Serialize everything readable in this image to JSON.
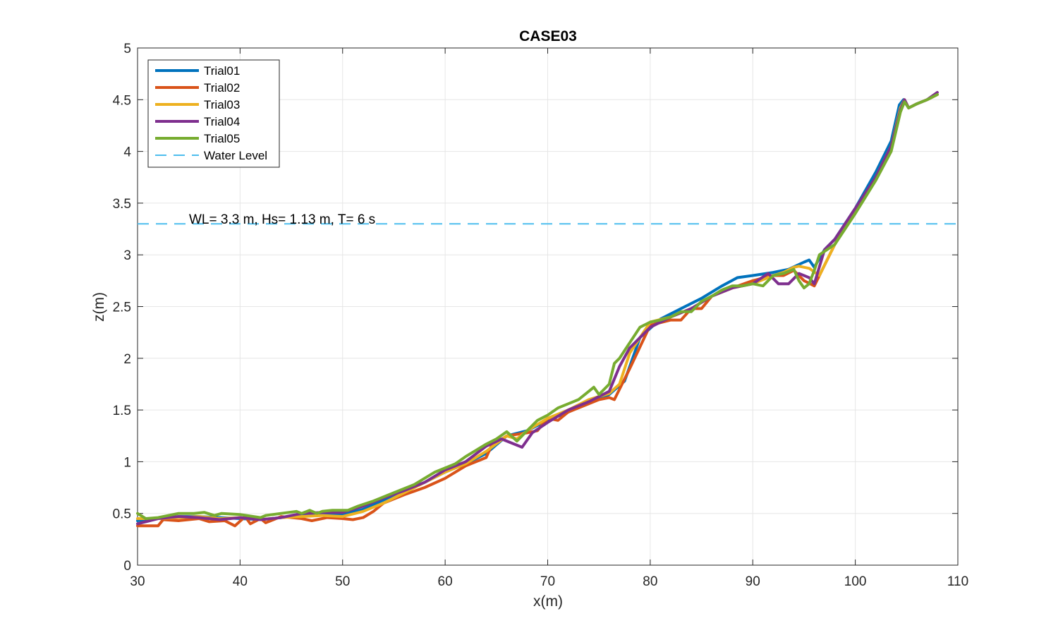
{
  "chart_data": {
    "type": "line",
    "title": "CASE03",
    "xlabel": "x(m)",
    "ylabel": "z(m)",
    "xlim": [
      30,
      110
    ],
    "ylim": [
      0,
      5
    ],
    "xticks": [
      "30",
      "40",
      "50",
      "60",
      "70",
      "80",
      "90",
      "100",
      "110"
    ],
    "yticks": [
      "0",
      "0.5",
      "1",
      "1.5",
      "2",
      "2.5",
      "3",
      "3.5",
      "4",
      "4.5",
      "5"
    ],
    "grid": true,
    "legend_position": "top-left",
    "annotation": "WL= 3.3 m,   Hs= 1.13 m, T= 6 s",
    "water_level": {
      "name": "Water Level",
      "value": 3.3,
      "color": "#4DBEEE",
      "style": "dashed"
    },
    "series": [
      {
        "name": "Trial01",
        "color": "#0072BD",
        "x": [
          30,
          32,
          34,
          36,
          38,
          40,
          42,
          44,
          46,
          48,
          50,
          52,
          54,
          56,
          58,
          60,
          62,
          64,
          66,
          68,
          70,
          72,
          74,
          76,
          77.5,
          79,
          81,
          83,
          85,
          87,
          88.5,
          90,
          92,
          93.5,
          95,
          95.5,
          96,
          97,
          98,
          100,
          102,
          103.5,
          104.3,
          104.7,
          105.2,
          106,
          107,
          108
        ],
        "y": [
          0.43,
          0.45,
          0.47,
          0.47,
          0.46,
          0.45,
          0.44,
          0.46,
          0.48,
          0.5,
          0.49,
          0.54,
          0.63,
          0.72,
          0.8,
          0.9,
          0.98,
          1.08,
          1.25,
          1.3,
          1.4,
          1.48,
          1.57,
          1.65,
          1.78,
          2.2,
          2.38,
          2.48,
          2.58,
          2.7,
          2.78,
          2.8,
          2.83,
          2.86,
          2.93,
          2.95,
          2.88,
          3.05,
          3.15,
          3.45,
          3.8,
          4.1,
          4.45,
          4.5,
          4.42,
          4.46,
          4.5,
          4.55
        ]
      },
      {
        "name": "Trial02",
        "color": "#D95319",
        "x": [
          30,
          31,
          32,
          32.5,
          34,
          36,
          37,
          38.5,
          39.5,
          40.5,
          41,
          42,
          42.5,
          44,
          46,
          47,
          48.5,
          50,
          51,
          52,
          53,
          54,
          56,
          58,
          60,
          62,
          64,
          64.5,
          66,
          68,
          69,
          70,
          71,
          72,
          74,
          75,
          76,
          76.5,
          78,
          80,
          82,
          83,
          84,
          85,
          86,
          88,
          90,
          92,
          93,
          94,
          95,
          96,
          97,
          98,
          100,
          102,
          103.5,
          104.4,
          104.8,
          105.2,
          106,
          107,
          108
        ],
        "y": [
          0.38,
          0.38,
          0.38,
          0.44,
          0.43,
          0.45,
          0.42,
          0.43,
          0.38,
          0.47,
          0.4,
          0.45,
          0.41,
          0.47,
          0.45,
          0.43,
          0.46,
          0.45,
          0.44,
          0.46,
          0.52,
          0.6,
          0.68,
          0.75,
          0.84,
          0.96,
          1.04,
          1.15,
          1.25,
          1.28,
          1.3,
          1.42,
          1.4,
          1.48,
          1.56,
          1.6,
          1.62,
          1.6,
          1.9,
          2.32,
          2.37,
          2.37,
          2.48,
          2.48,
          2.6,
          2.68,
          2.75,
          2.8,
          2.8,
          2.85,
          2.75,
          2.7,
          2.9,
          3.1,
          3.42,
          3.75,
          4.05,
          4.4,
          4.5,
          4.42,
          4.46,
          4.5,
          4.55
        ]
      },
      {
        "name": "Trial03",
        "color": "#EDB120",
        "x": [
          30,
          32,
          34,
          36,
          38,
          40,
          42,
          44,
          46,
          48,
          50,
          52,
          54,
          56,
          58,
          60,
          62,
          64,
          66,
          67,
          68,
          70,
          72,
          74,
          76,
          77,
          78,
          80,
          82,
          84,
          86,
          88,
          90,
          92,
          93,
          94,
          94.5,
          95.5,
          96.5,
          98,
          100,
          102,
          103.5,
          104.4,
          104.8,
          105.2,
          106,
          107,
          108
        ],
        "y": [
          0.45,
          0.45,
          0.46,
          0.47,
          0.45,
          0.46,
          0.44,
          0.46,
          0.47,
          0.48,
          0.47,
          0.52,
          0.6,
          0.7,
          0.8,
          0.9,
          0.98,
          1.1,
          1.25,
          1.22,
          1.3,
          1.42,
          1.5,
          1.6,
          1.66,
          1.75,
          2.05,
          2.35,
          2.4,
          2.48,
          2.6,
          2.68,
          2.72,
          2.8,
          2.83,
          2.88,
          2.89,
          2.87,
          2.8,
          3.1,
          3.42,
          3.75,
          4.05,
          4.42,
          4.5,
          4.42,
          4.46,
          4.5,
          4.55
        ]
      },
      {
        "name": "Trial04",
        "color": "#7E2F8E",
        "x": [
          30,
          32,
          34,
          36,
          38,
          40,
          42,
          44,
          46,
          48,
          50,
          52,
          54,
          56,
          58,
          60,
          62,
          64,
          65.5,
          66,
          67.5,
          68.5,
          70,
          72,
          74,
          76,
          77,
          78,
          80,
          82,
          84,
          86,
          88,
          90,
          91.5,
          92.5,
          93.5,
          94.5,
          95.5,
          96,
          97,
          98,
          100,
          102,
          103.5,
          104.4,
          104.8,
          105.2,
          106,
          107,
          108
        ],
        "y": [
          0.4,
          0.45,
          0.47,
          0.46,
          0.44,
          0.46,
          0.44,
          0.46,
          0.5,
          0.51,
          0.51,
          0.57,
          0.65,
          0.72,
          0.8,
          0.92,
          1.0,
          1.15,
          1.22,
          1.2,
          1.14,
          1.28,
          1.38,
          1.5,
          1.58,
          1.68,
          1.92,
          2.1,
          2.3,
          2.4,
          2.48,
          2.6,
          2.68,
          2.72,
          2.82,
          2.72,
          2.72,
          2.82,
          2.78,
          2.72,
          3.05,
          3.15,
          3.45,
          3.75,
          4.05,
          4.4,
          4.5,
          4.42,
          4.46,
          4.5,
          4.57
        ]
      },
      {
        "name": "Trial05",
        "color": "#77AC30",
        "x": [
          30,
          30.8,
          32,
          34,
          35.5,
          36.5,
          37.5,
          38.2,
          40,
          42,
          42.5,
          44,
          45.5,
          46,
          46.8,
          47.5,
          48,
          49,
          50.5,
          51.5,
          53,
          55,
          57,
          59,
          61,
          62,
          64,
          65,
          66,
          67,
          68,
          69,
          70,
          71,
          72,
          73,
          74,
          74.5,
          75,
          76,
          76.5,
          77,
          78,
          79,
          80,
          81,
          82,
          83,
          84,
          85,
          86,
          87,
          88,
          89,
          90,
          91,
          92,
          93,
          94,
          94.5,
          95,
          95.5,
          96,
          96.5,
          98,
          100,
          102,
          103.5,
          104.4,
          104.8,
          105.2,
          106,
          107,
          108
        ],
        "y": [
          0.5,
          0.45,
          0.46,
          0.5,
          0.5,
          0.51,
          0.48,
          0.5,
          0.49,
          0.46,
          0.48,
          0.5,
          0.52,
          0.5,
          0.53,
          0.5,
          0.52,
          0.53,
          0.53,
          0.57,
          0.62,
          0.7,
          0.78,
          0.9,
          0.98,
          1.05,
          1.17,
          1.22,
          1.29,
          1.2,
          1.3,
          1.4,
          1.45,
          1.52,
          1.56,
          1.6,
          1.68,
          1.72,
          1.65,
          1.75,
          1.95,
          2.0,
          2.15,
          2.3,
          2.35,
          2.37,
          2.4,
          2.45,
          2.45,
          2.55,
          2.6,
          2.66,
          2.7,
          2.7,
          2.72,
          2.7,
          2.8,
          2.82,
          2.86,
          2.75,
          2.68,
          2.72,
          2.85,
          3.0,
          3.1,
          3.4,
          3.72,
          4.0,
          4.38,
          4.48,
          4.42,
          4.46,
          4.5,
          4.55
        ]
      }
    ]
  }
}
